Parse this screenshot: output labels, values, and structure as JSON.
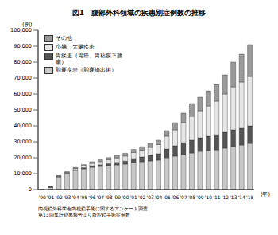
{
  "chart_data": {
    "type": "bar",
    "title": "図1　腹部外科領域の疾患別症例数の推移",
    "y_label": "(例)",
    "x_label": "(年)",
    "categories": [
      "'90",
      "'91",
      "'92",
      "'93",
      "'94",
      "'95",
      "'96",
      "'97",
      "'98",
      "'99",
      "'00",
      "'01",
      "'02",
      "'03",
      "'04",
      "'05",
      "'06",
      "'07",
      "'08",
      "'09",
      "'10",
      "'11",
      "'12",
      "'13",
      "'14",
      "'15"
    ],
    "series": [
      {
        "name": "胆嚢疾患（胆嚢摘出術）",
        "color": "#c8c8c8",
        "values": [
          100,
          1500,
          8000,
          10000,
          12000,
          13000,
          14000,
          14500,
          15000,
          15500,
          16000,
          17000,
          17500,
          18000,
          18500,
          20000,
          21000,
          22000,
          23000,
          24000,
          24500,
          25000,
          26000,
          27000,
          28000,
          29000
        ]
      },
      {
        "name": "胃疾患（胃癌、胃粘膜下腫瘍）",
        "color": "#555555",
        "values": [
          0,
          50,
          200,
          300,
          500,
          700,
          900,
          1100,
          1300,
          1600,
          1900,
          2500,
          3000,
          3500,
          4000,
          5500,
          6500,
          7500,
          8000,
          8500,
          9000,
          9500,
          10000,
          10500,
          10500,
          11000
        ]
      },
      {
        "name": "小腸、大腸疾患",
        "color": "#e6e6e6",
        "values": [
          0,
          50,
          300,
          500,
          800,
          1200,
          1600,
          2000,
          2400,
          2800,
          3200,
          3800,
          4300,
          5000,
          5800,
          8000,
          10000,
          12500,
          15000,
          17000,
          19000,
          21000,
          24000,
          27000,
          29000,
          31000
        ]
      },
      {
        "name": "その他",
        "color": "#9a9a9a",
        "values": [
          0,
          50,
          300,
          400,
          600,
          800,
          1000,
          1200,
          1400,
          1600,
          1700,
          1900,
          2100,
          2400,
          2700,
          3500,
          4500,
          6000,
          8000,
          8500,
          9500,
          10500,
          12000,
          15500,
          17500,
          20000
        ]
      }
    ],
    "ylim": [
      0,
      100000
    ],
    "yticks": [
      0,
      {
        "value": 10000,
        "label": "10,000"
      },
      {
        "value": 20000,
        "label": "20,000"
      },
      {
        "value": 30000,
        "label": "30,000"
      },
      {
        "value": 40000,
        "label": "40,000"
      },
      {
        "value": 50000,
        "label": "50,000"
      },
      {
        "value": 60000,
        "label": "60,000"
      },
      {
        "value": 70000,
        "label": "70,000"
      },
      {
        "value": 80000,
        "label": "80,000"
      },
      {
        "value": 90000,
        "label": "90,000"
      },
      {
        "value": 100000,
        "label": "100,000"
      }
    ],
    "stacked": true,
    "grid": false,
    "legend": "upper left",
    "annotations": [
      "内視鏡外科学会内視鏡手術に関するアンケート調査",
      "第13回集計結果報告より腹腔鏡手術症例数"
    ]
  }
}
